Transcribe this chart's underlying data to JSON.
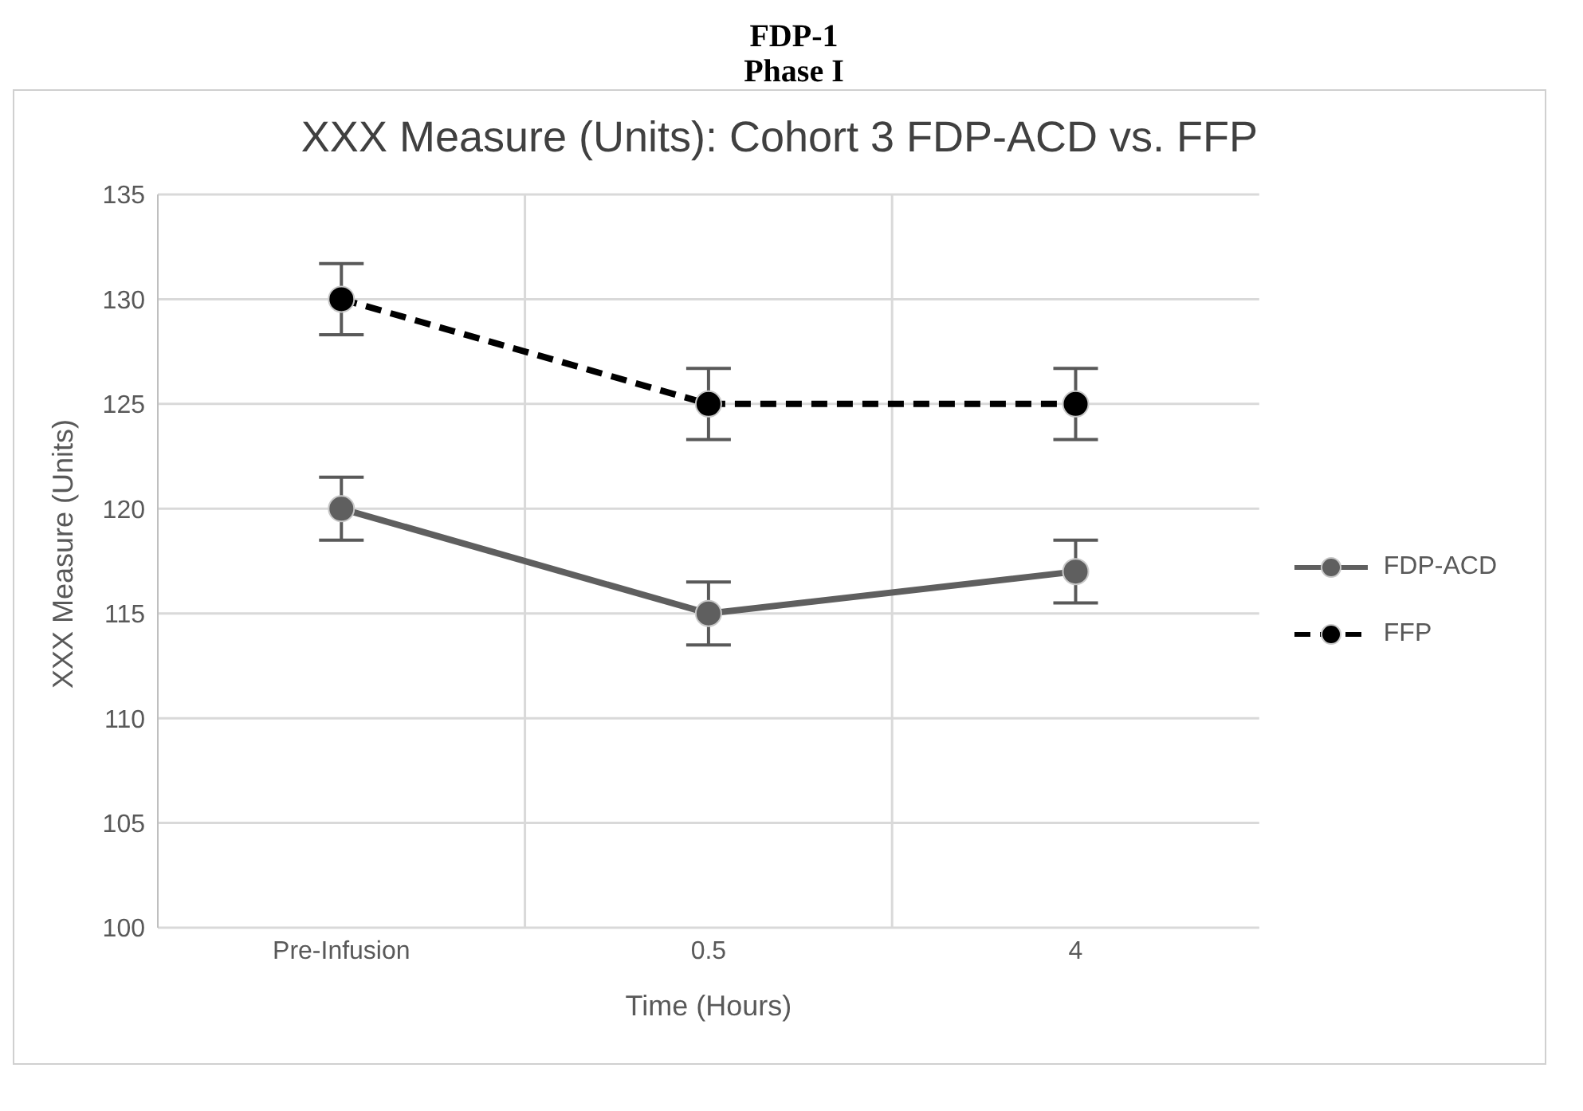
{
  "chart_data": {
    "type": "line",
    "title": "FDP-1",
    "subtitle": "Phase I",
    "annotations": [
      "XXX Measure (Units): Cohort 3 FDP-ACD vs. FFP"
    ],
    "xlabel": "Time (Hours)",
    "ylabel": "XXX Measure (Units)",
    "categories": [
      "Pre-Infusion",
      "0.5",
      "4"
    ],
    "series": [
      {
        "name": "FDP-ACD",
        "color": "#5f5f5f",
        "values": [
          120,
          115,
          117
        ],
        "errors": [
          1.5,
          1.5,
          1.5
        ],
        "line_style": "solid"
      },
      {
        "name": "FFP",
        "color": "#000000",
        "values": [
          130,
          125,
          125
        ],
        "errors": [
          1.7,
          1.7,
          1.7
        ],
        "line_style": "dashed"
      }
    ],
    "ylim": [
      100,
      135
    ],
    "yticks": [
      100,
      105,
      110,
      115,
      120,
      125,
      130,
      135
    ],
    "grid": true,
    "legend": "right",
    "marker": "circle"
  }
}
